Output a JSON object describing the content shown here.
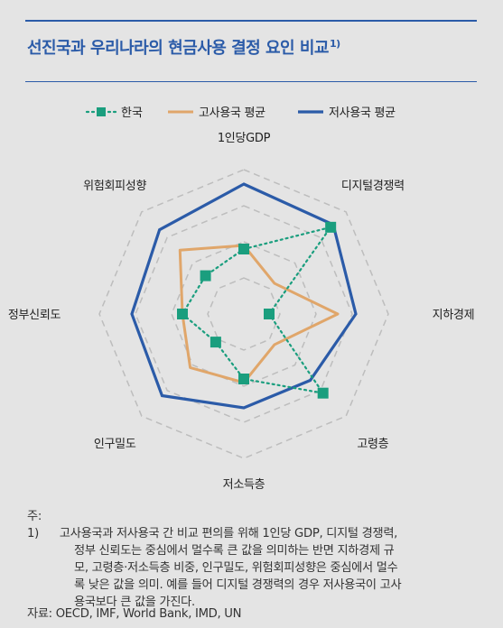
{
  "title": "선진국과 우리나라의 현금사용 결정 요인 비교",
  "title_sup": "1)",
  "colors": {
    "accent": "#2b5ba8",
    "korea": "#1a9e7e",
    "high_cash": "#e0a66a",
    "low_cash": "#2b5ba8",
    "grid": "#bdbdbd"
  },
  "chart_data": {
    "type": "radar",
    "axes": [
      "1인당GDP",
      "디지털경쟁력",
      "지하경제",
      "고령층",
      "저소득층",
      "인구밀도",
      "정부신뢰도",
      "위험회피성향"
    ],
    "rlim": [
      0,
      4
    ],
    "grid": true,
    "legend_position": "top",
    "series": [
      {
        "name": "한국",
        "values": [
          1.8,
          3.4,
          0.7,
          3.1,
          1.8,
          1.1,
          1.7,
          1.5
        ]
      },
      {
        "name": "고사용국 평균",
        "values": [
          1.9,
          1.2,
          2.6,
          1.2,
          1.9,
          2.1,
          1.7,
          2.5
        ]
      },
      {
        "name": "저사용국 평균",
        "values": [
          3.6,
          3.5,
          3.1,
          2.6,
          2.6,
          3.2,
          3.1,
          3.3
        ]
      }
    ]
  },
  "note": {
    "prefix": "주: 1)",
    "line1": "고사용국과 저사용국 간 비교 편의를 위해 1인당 GDP, 디지털 경쟁력,",
    "line2": "정부 신뢰도는 중심에서 멀수록 큰 값을 의미하는 반면 지하경제 규",
    "line3": "모, 고령층·저소득층 비중, 인구밀도, 위험회피성향은 중심에서 멀수",
    "line4": "록 낮은 값을 의미. 예를 들어 디지털 경쟁력의 경우 저사용국이 고사",
    "line5": "용국보다 큰 값을 가진다."
  },
  "source": "자료: OECD, IMF, World Bank, IMD, UN"
}
